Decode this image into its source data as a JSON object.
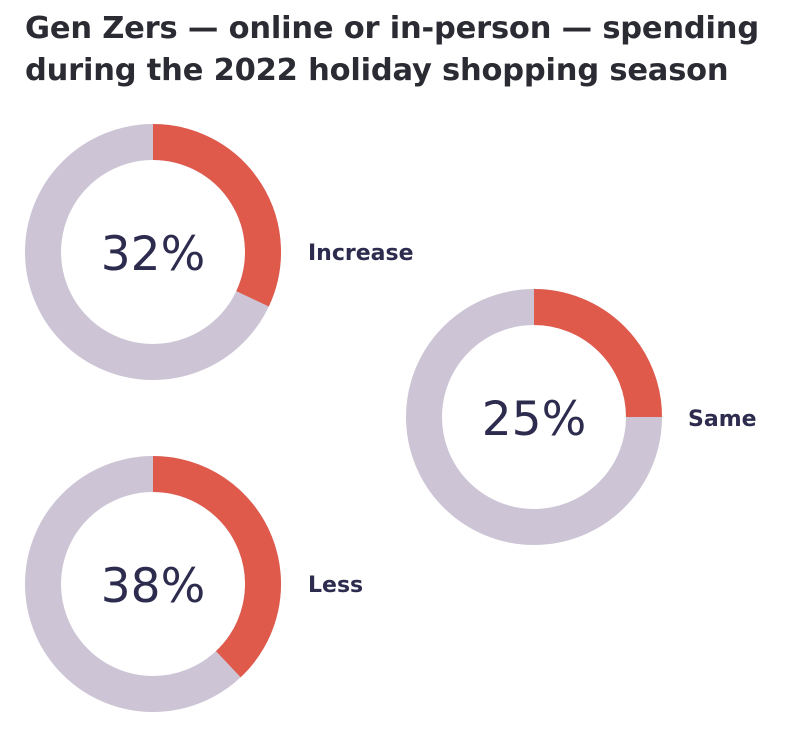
{
  "title_lines": [
    "Gen Zers — online or in-person — spending",
    "during the 2022 holiday shopping season"
  ],
  "colors": {
    "highlight": "#e05a4c",
    "track": "#cdc5d5",
    "text": "#2d2c4f",
    "title": "#2b2b33"
  },
  "chart_data": {
    "type": "pie",
    "title": "Gen Zers — online or in-person — spending during the 2022 holiday shopping season",
    "categories": [
      "Increase",
      "Same",
      "Less"
    ],
    "values": [
      32,
      25,
      38
    ],
    "value_labels": [
      "32%",
      "25%",
      "38%"
    ],
    "unit": "%"
  }
}
